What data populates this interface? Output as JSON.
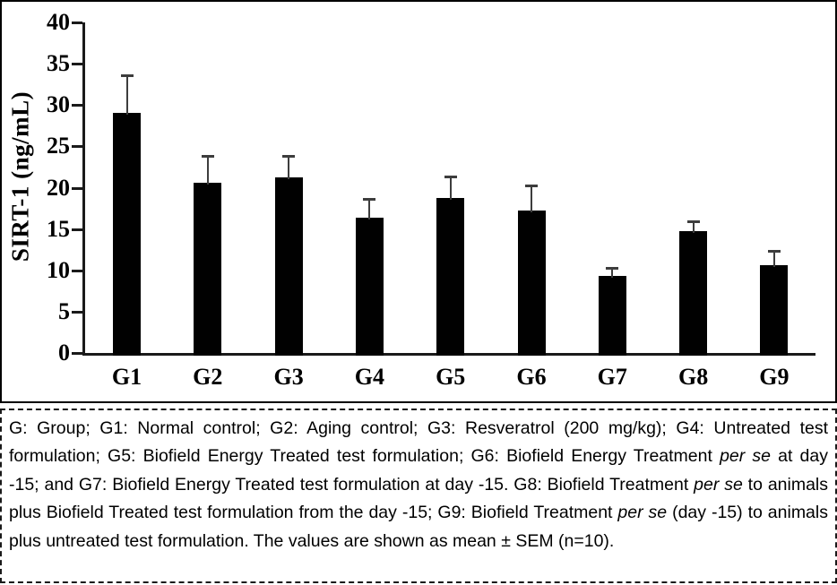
{
  "chart_data": {
    "type": "bar",
    "title": "",
    "ylabel": "SIRT-1 (ng/mL)",
    "xlabel": "",
    "ylim": [
      0,
      40
    ],
    "yticks": [
      0,
      5,
      10,
      15,
      20,
      25,
      30,
      35,
      40
    ],
    "categories": [
      "G1",
      "G2",
      "G3",
      "G4",
      "G5",
      "G6",
      "G7",
      "G8",
      "G9"
    ],
    "series": [
      {
        "name": "SIRT-1 (ng/mL)",
        "values": [
          29.1,
          20.6,
          21.2,
          16.4,
          18.7,
          17.2,
          9.3,
          14.7,
          10.6
        ],
        "errors_sem_upper": [
          4.5,
          3.3,
          2.6,
          2.2,
          2.7,
          3.1,
          1.0,
          1.2,
          1.8
        ]
      }
    ],
    "error_bars": "upper SEM only",
    "grid": false,
    "legend_position": "none",
    "bar_color": "#010101",
    "error_bar_color": "#3d3d3d",
    "axis_color": "#1a1a1a"
  },
  "caption": {
    "segments": [
      {
        "text": "G: Group; G1: Normal control; G2: Aging control; G3: Resveratrol (200 mg/kg); G4: Untreated test formulation; G5: Biofield Energy Treated test formulation; G6: Biofield Energy Treatment ",
        "italic": false
      },
      {
        "text": "per se",
        "italic": true
      },
      {
        "text": " at day -15; and G7: Biofield Energy Treated test formulation at day -15. G8: Biofield Treatment ",
        "italic": false
      },
      {
        "text": "per se",
        "italic": true
      },
      {
        "text": " to animals plus Biofield Treated test formulation from the day -15; G9: Biofield Treatment ",
        "italic": false
      },
      {
        "text": "per se",
        "italic": true
      },
      {
        "text": " (day -15) to animals plus untreated test formulation. The values are shown as mean ± SEM (n=10).",
        "italic": false
      }
    ]
  }
}
